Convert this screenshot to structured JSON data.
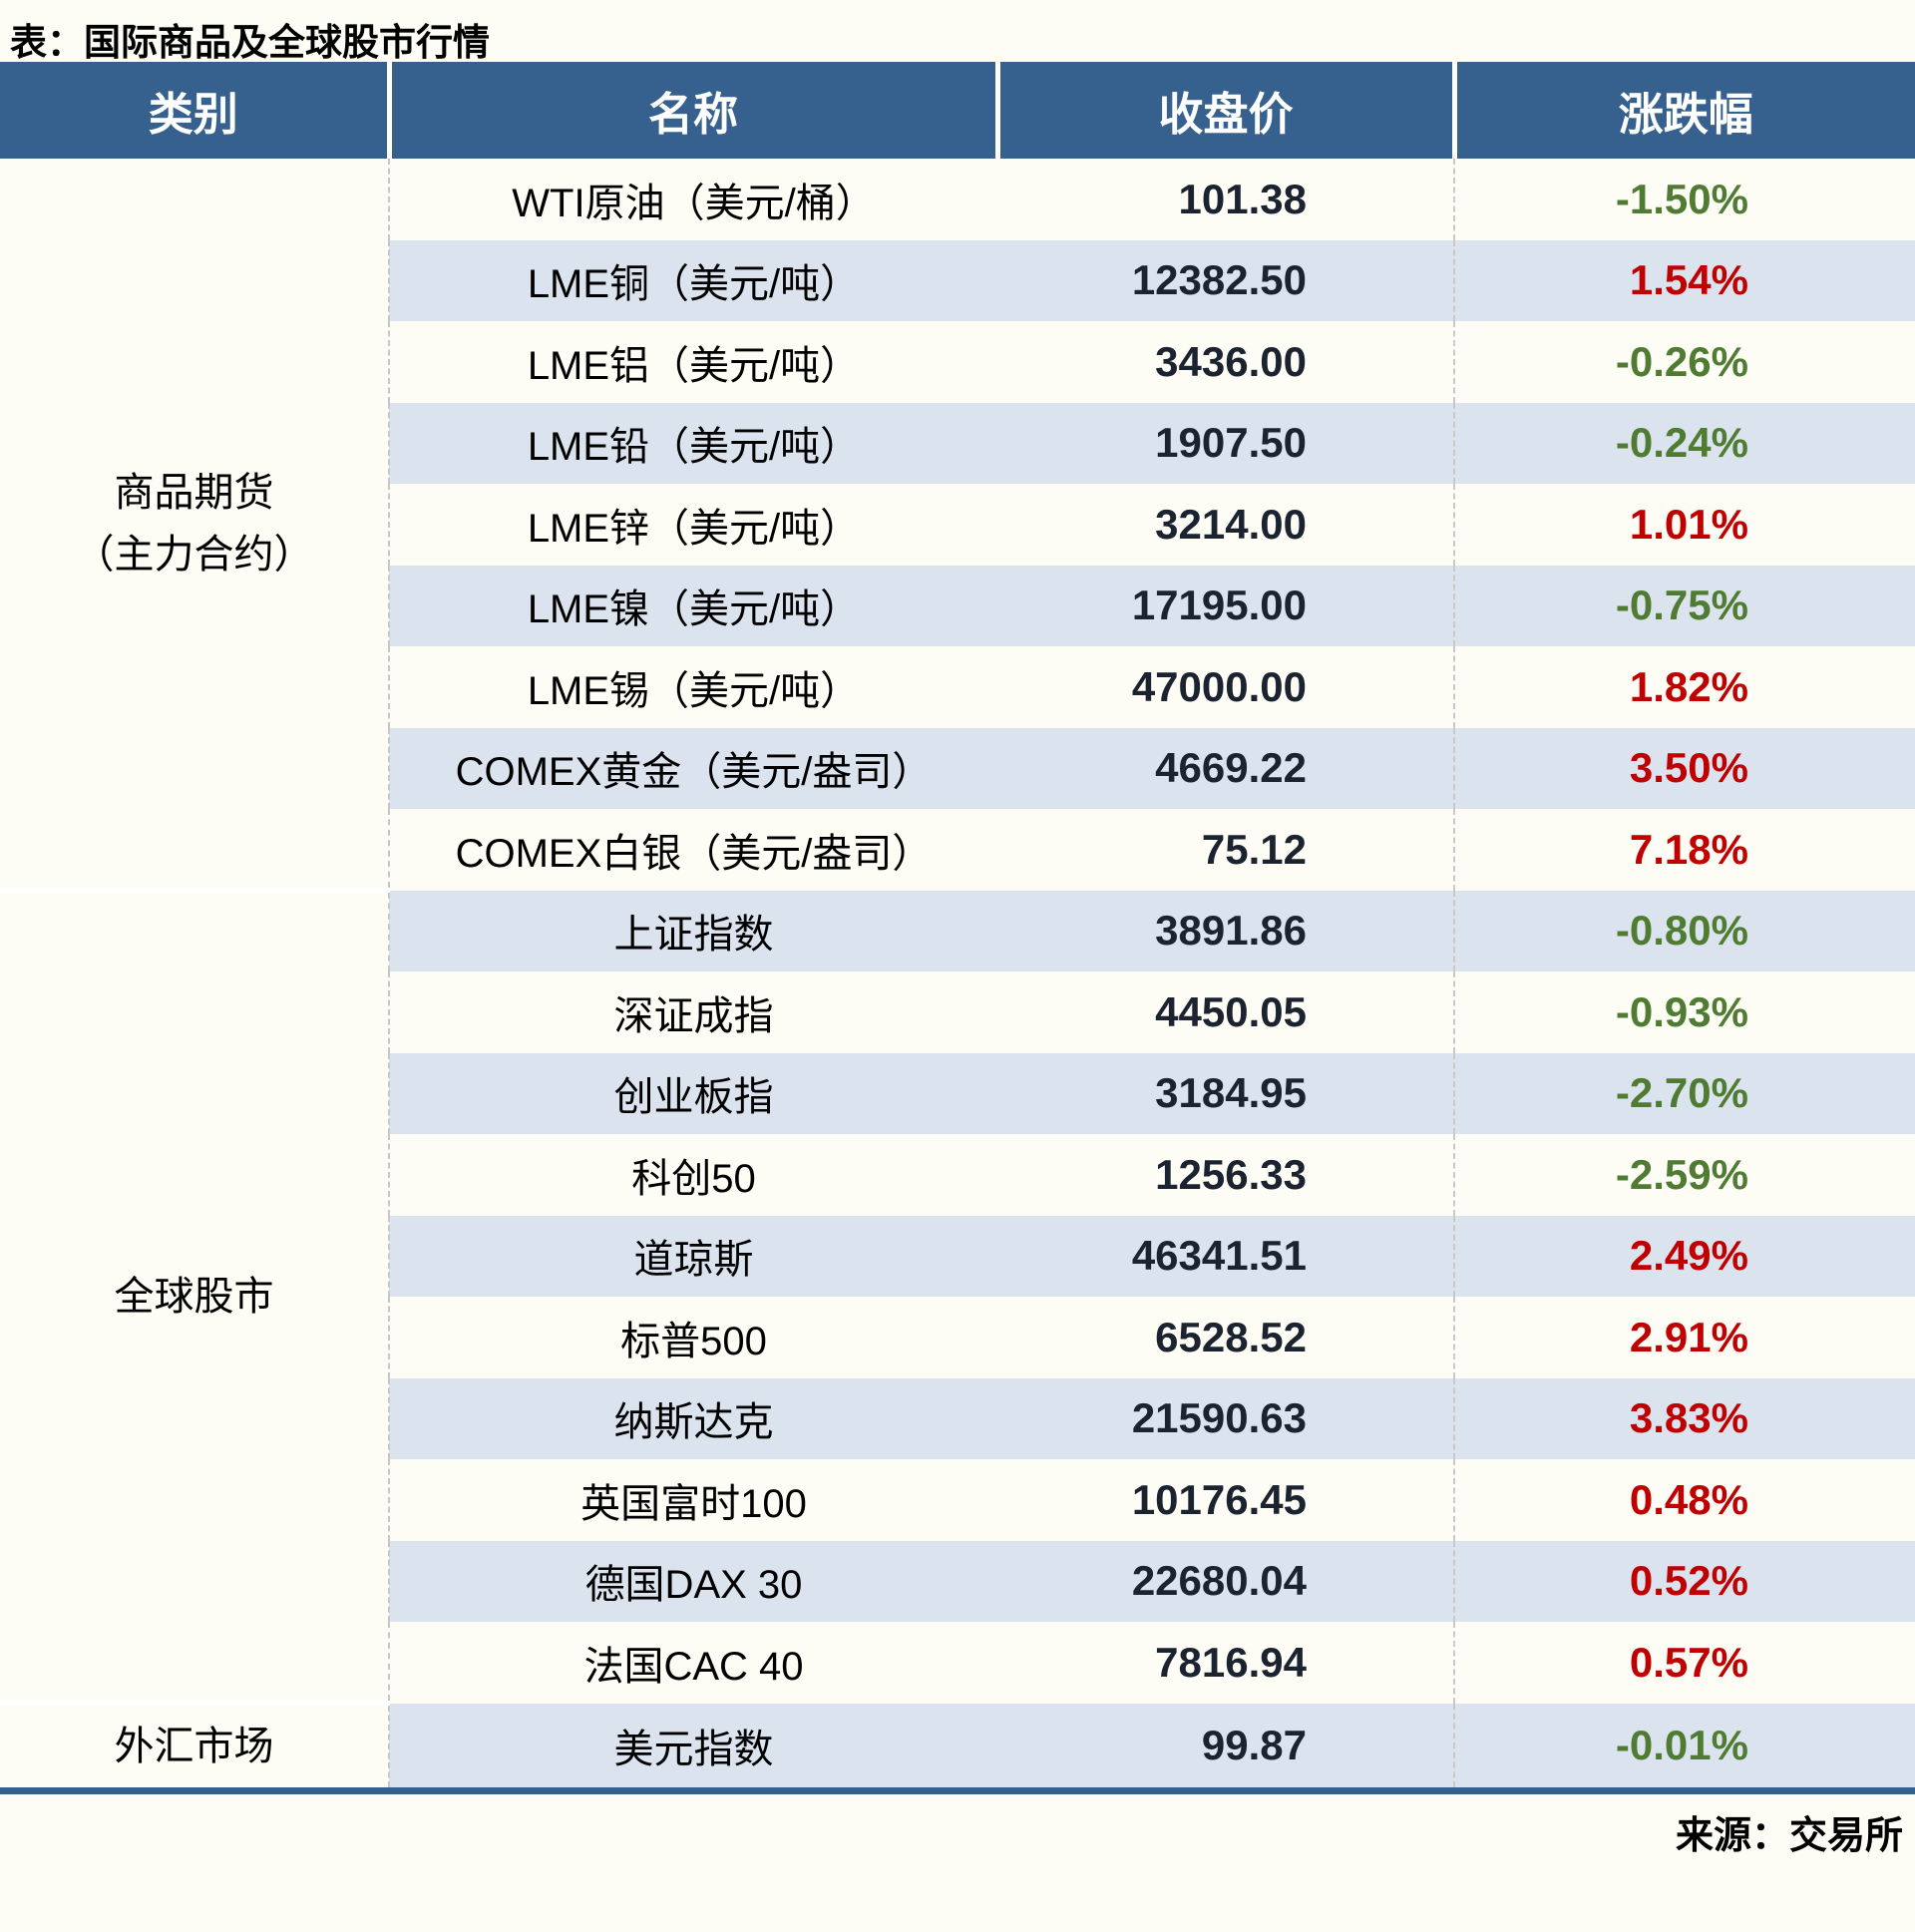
{
  "title": "表：国际商品及全球股市行情",
  "source": "来源：交易所",
  "columns": [
    "类别",
    "名称",
    "收盘价",
    "涨跌幅"
  ],
  "colors": {
    "header_bg": "#36618e",
    "page_bg": "#fdfdf5",
    "row_alt": "#dbe4ee",
    "up": "#c00000",
    "down": "#4f7b32"
  },
  "sections": [
    {
      "category": "商品期货\n（主力合约）",
      "rows": [
        {
          "name": "WTI原油（美元/桶）",
          "close": "101.38",
          "change": "-1.50%",
          "direction": "down"
        },
        {
          "name": "LME铜（美元/吨）",
          "close": "12382.50",
          "change": "1.54%",
          "direction": "up"
        },
        {
          "name": "LME铝（美元/吨）",
          "close": "3436.00",
          "change": "-0.26%",
          "direction": "down"
        },
        {
          "name": "LME铅（美元/吨）",
          "close": "1907.50",
          "change": "-0.24%",
          "direction": "down"
        },
        {
          "name": "LME锌（美元/吨）",
          "close": "3214.00",
          "change": "1.01%",
          "direction": "up"
        },
        {
          "name": "LME镍（美元/吨）",
          "close": "17195.00",
          "change": "-0.75%",
          "direction": "down"
        },
        {
          "name": "LME锡（美元/吨）",
          "close": "47000.00",
          "change": "1.82%",
          "direction": "up"
        },
        {
          "name": "COMEX黄金（美元/盎司）",
          "close": "4669.22",
          "change": "3.50%",
          "direction": "up"
        },
        {
          "name": "COMEX白银（美元/盎司）",
          "close": "75.12",
          "change": "7.18%",
          "direction": "up"
        }
      ]
    },
    {
      "category": "全球股市",
      "rows": [
        {
          "name": "上证指数",
          "close": "3891.86",
          "change": "-0.80%",
          "direction": "down"
        },
        {
          "name": "深证成指",
          "close": "4450.05",
          "change": "-0.93%",
          "direction": "down"
        },
        {
          "name": "创业板指",
          "close": "3184.95",
          "change": "-2.70%",
          "direction": "down"
        },
        {
          "name": "科创50",
          "close": "1256.33",
          "change": "-2.59%",
          "direction": "down"
        },
        {
          "name": "道琼斯",
          "close": "46341.51",
          "change": "2.49%",
          "direction": "up"
        },
        {
          "name": "标普500",
          "close": "6528.52",
          "change": "2.91%",
          "direction": "up"
        },
        {
          "name": "纳斯达克",
          "close": "21590.63",
          "change": "3.83%",
          "direction": "up"
        },
        {
          "name": "英国富时100",
          "close": "10176.45",
          "change": "0.48%",
          "direction": "up"
        },
        {
          "name": "德国DAX 30",
          "close": "22680.04",
          "change": "0.52%",
          "direction": "up"
        },
        {
          "name": "法国CAC 40",
          "close": "7816.94",
          "change": "0.57%",
          "direction": "up"
        }
      ]
    },
    {
      "category": "外汇市场",
      "rows": [
        {
          "name": "美元指数",
          "close": "99.87",
          "change": "-0.01%",
          "direction": "down"
        }
      ]
    }
  ],
  "chart_data": {
    "type": "table",
    "title": "表：国际商品及全球股市行情",
    "columns": [
      "类别",
      "名称",
      "收盘价",
      "涨跌幅"
    ],
    "rows": [
      [
        "商品期货（主力合约）",
        "WTI原油（美元/桶）",
        101.38,
        "-1.50%"
      ],
      [
        "商品期货（主力合约）",
        "LME铜（美元/吨）",
        12382.5,
        "1.54%"
      ],
      [
        "商品期货（主力合约）",
        "LME铝（美元/吨）",
        3436.0,
        "-0.26%"
      ],
      [
        "商品期货（主力合约）",
        "LME铅（美元/吨）",
        1907.5,
        "-0.24%"
      ],
      [
        "商品期货（主力合约）",
        "LME锌（美元/吨）",
        3214.0,
        "1.01%"
      ],
      [
        "商品期货（主力合约）",
        "LME镍（美元/吨）",
        17195.0,
        "-0.75%"
      ],
      [
        "商品期货（主力合约）",
        "LME锡（美元/吨）",
        47000.0,
        "1.82%"
      ],
      [
        "商品期货（主力合约）",
        "COMEX黄金（美元/盎司）",
        4669.22,
        "3.50%"
      ],
      [
        "商品期货（主力合约）",
        "COMEX白银（美元/盎司）",
        75.12,
        "7.18%"
      ],
      [
        "全球股市",
        "上证指数",
        3891.86,
        "-0.80%"
      ],
      [
        "全球股市",
        "深证成指",
        4450.05,
        "-0.93%"
      ],
      [
        "全球股市",
        "创业板指",
        3184.95,
        "-2.70%"
      ],
      [
        "全球股市",
        "科创50",
        1256.33,
        "-2.59%"
      ],
      [
        "全球股市",
        "道琼斯",
        46341.51,
        "2.49%"
      ],
      [
        "全球股市",
        "标普500",
        6528.52,
        "2.91%"
      ],
      [
        "全球股市",
        "纳斯达克",
        21590.63,
        "3.83%"
      ],
      [
        "全球股市",
        "英国富时100",
        10176.45,
        "0.48%"
      ],
      [
        "全球股市",
        "德国DAX 30",
        22680.04,
        "0.52%"
      ],
      [
        "全球股市",
        "法国CAC 40",
        7816.94,
        "0.57%"
      ],
      [
        "外汇市场",
        "美元指数",
        99.87,
        "-0.01%"
      ]
    ],
    "legend": {
      "red": "上涨 (positive change)",
      "green": "下跌 (negative change)"
    },
    "source": "来源：交易所"
  }
}
